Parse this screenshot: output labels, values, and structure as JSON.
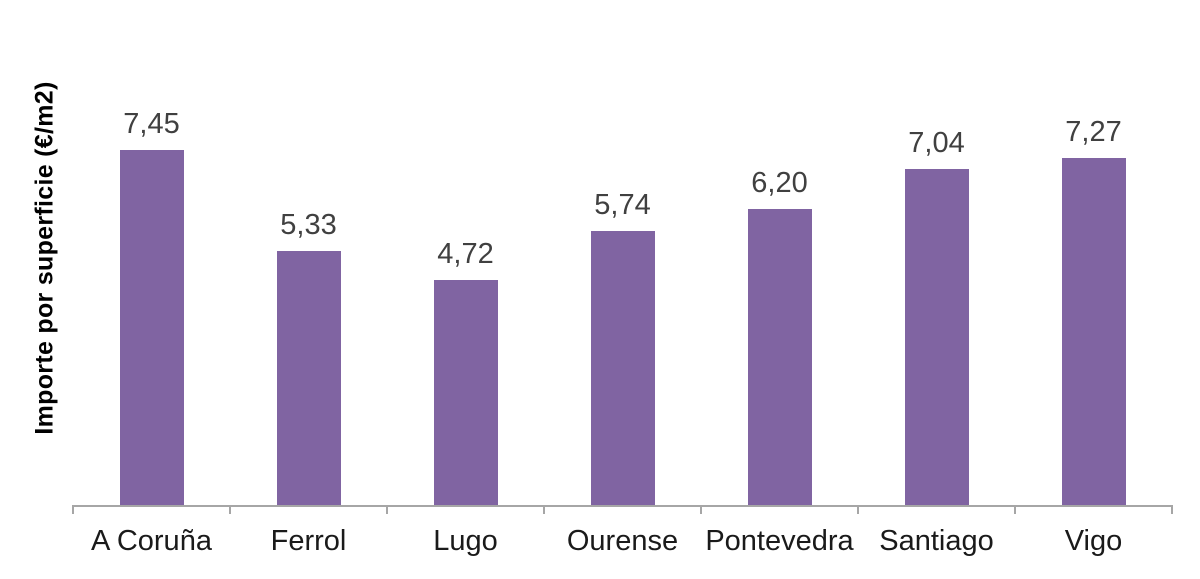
{
  "chart_data": {
    "type": "bar",
    "title": "",
    "xlabel": "",
    "ylabel": "Importe por superficie (€/m2)",
    "categories": [
      "A Coruña",
      "Ferrol",
      "Lugo",
      "Ourense",
      "Pontevedra",
      "Santiago",
      "Vigo"
    ],
    "values": [
      7.45,
      5.33,
      4.72,
      5.74,
      6.2,
      7.04,
      7.27
    ],
    "value_labels": [
      "7,45",
      "5,33",
      "4,72",
      "5,74",
      "6,20",
      "7,04",
      "7,27"
    ],
    "ylim": [
      0,
      10
    ],
    "grid": false,
    "legend": null,
    "colors": {
      "bar": "#8064A2",
      "value_label": "#404040",
      "category_label": "#1a1a1a",
      "axis": "#A6A6A6",
      "ylabel_text": "#000000",
      "background": "#ffffff"
    }
  }
}
